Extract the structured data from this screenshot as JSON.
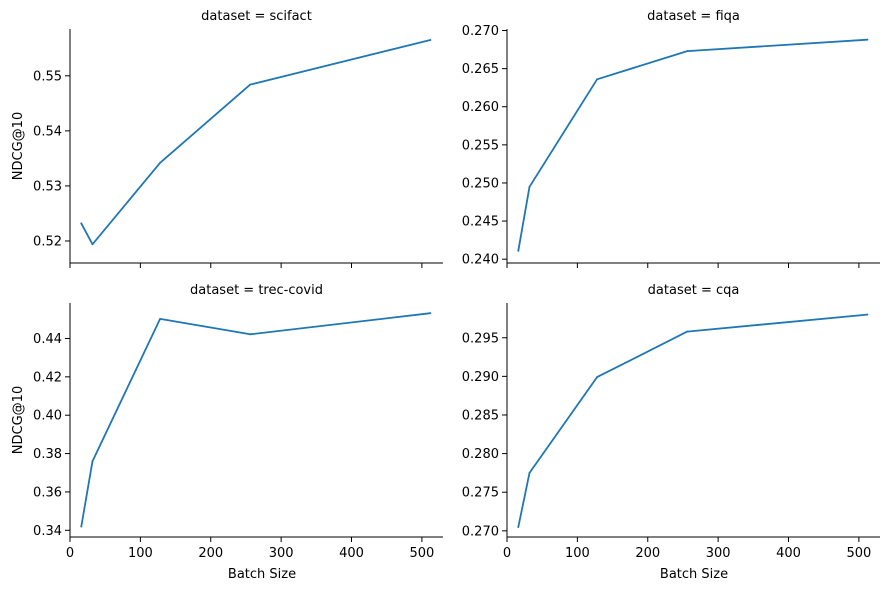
{
  "figure": {
    "xlabel": "Batch Size",
    "ylabel": "NDCG@10",
    "line_color": "#1f77b4"
  },
  "chart_data": [
    {
      "type": "line",
      "title": "dataset = scifact",
      "x": [
        16,
        32,
        128,
        256,
        512
      ],
      "values": [
        0.5232,
        0.5194,
        0.5342,
        0.5484,
        0.5565
      ],
      "xlim": [
        0,
        530
      ],
      "ylim": [
        0.516,
        0.5585
      ],
      "xticks": [
        0,
        100,
        200,
        300,
        400,
        500
      ],
      "yticks": [
        0.52,
        0.53,
        0.54,
        0.55
      ],
      "ytick_labels": [
        "0.52",
        "0.53",
        "0.54",
        "0.55"
      ],
      "show_xlabels": false,
      "show_ylabel": true
    },
    {
      "type": "line",
      "title": "dataset = fiqa",
      "x": [
        16,
        32,
        128,
        256,
        512
      ],
      "values": [
        0.2411,
        0.2495,
        0.2636,
        0.2673,
        0.2688
      ],
      "xlim": [
        0,
        530
      ],
      "ylim": [
        0.2395,
        0.2702
      ],
      "xticks": [
        0,
        100,
        200,
        300,
        400,
        500
      ],
      "yticks": [
        0.24,
        0.245,
        0.25,
        0.255,
        0.26,
        0.265,
        0.27
      ],
      "ytick_labels": [
        "0.240",
        "0.245",
        "0.250",
        "0.255",
        "0.260",
        "0.265",
        "0.270"
      ],
      "show_xlabels": false,
      "show_ylabel": false
    },
    {
      "type": "line",
      "title": "dataset = trec-covid",
      "x": [
        16,
        32,
        128,
        256,
        512
      ],
      "values": [
        0.342,
        0.376,
        0.4502,
        0.4422,
        0.4532
      ],
      "xlim": [
        0,
        530
      ],
      "ylim": [
        0.3365,
        0.4585
      ],
      "xticks": [
        0,
        100,
        200,
        300,
        400,
        500
      ],
      "yticks": [
        0.34,
        0.36,
        0.38,
        0.4,
        0.42,
        0.44
      ],
      "ytick_labels": [
        "0.34",
        "0.36",
        "0.38",
        "0.40",
        "0.42",
        "0.44"
      ],
      "show_xlabels": true,
      "show_ylabel": true
    },
    {
      "type": "line",
      "title": "dataset = cqa",
      "x": [
        16,
        32,
        128,
        256,
        512
      ],
      "values": [
        0.2705,
        0.2775,
        0.2899,
        0.2958,
        0.298
      ],
      "xlim": [
        0,
        530
      ],
      "ylim": [
        0.2692,
        0.2995
      ],
      "xticks": [
        0,
        100,
        200,
        300,
        400,
        500
      ],
      "yticks": [
        0.27,
        0.275,
        0.28,
        0.285,
        0.29,
        0.295
      ],
      "ytick_labels": [
        "0.270",
        "0.275",
        "0.280",
        "0.285",
        "0.290",
        "0.295"
      ],
      "show_xlabels": true,
      "show_ylabel": false
    }
  ]
}
